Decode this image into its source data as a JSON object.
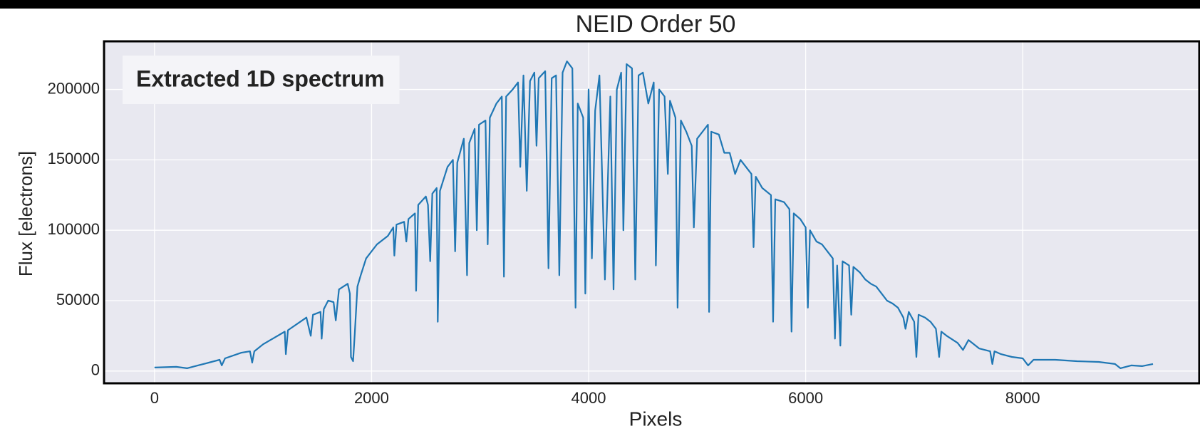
{
  "chart_data": {
    "type": "line",
    "title": "NEID Order 50",
    "x_label": "Pixels",
    "y_label": "Flux [electrons]",
    "x": [
      0,
      200,
      300,
      400,
      500,
      600,
      620,
      650,
      800,
      880,
      900,
      920,
      1000,
      1200,
      1210,
      1230,
      1400,
      1440,
      1460,
      1530,
      1540,
      1560,
      1600,
      1650,
      1670,
      1700,
      1780,
      1800,
      1810,
      1830,
      1845,
      1870,
      1900,
      1950,
      2050,
      2150,
      2200,
      2210,
      2230,
      2300,
      2320,
      2340,
      2400,
      2410,
      2430,
      2500,
      2520,
      2540,
      2560,
      2600,
      2610,
      2630,
      2700,
      2750,
      2770,
      2790,
      2850,
      2880,
      2900,
      2950,
      2970,
      2990,
      3050,
      3070,
      3090,
      3150,
      3200,
      3220,
      3240,
      3300,
      3350,
      3370,
      3400,
      3430,
      3460,
      3500,
      3520,
      3540,
      3600,
      3630,
      3660,
      3700,
      3730,
      3760,
      3800,
      3850,
      3880,
      3900,
      3950,
      3970,
      4000,
      4030,
      4060,
      4100,
      4150,
      4200,
      4230,
      4260,
      4300,
      4320,
      4350,
      4400,
      4430,
      4460,
      4500,
      4550,
      4600,
      4620,
      4650,
      4700,
      4730,
      4750,
      4800,
      4820,
      4850,
      4900,
      4950,
      4970,
      5000,
      5100,
      5110,
      5130,
      5200,
      5250,
      5300,
      5350,
      5400,
      5500,
      5520,
      5540,
      5600,
      5680,
      5700,
      5720,
      5800,
      5850,
      5870,
      5890,
      5950,
      6000,
      6020,
      6040,
      6100,
      6150,
      6200,
      6250,
      6270,
      6290,
      6320,
      6340,
      6400,
      6420,
      6440,
      6500,
      6550,
      6600,
      6650,
      6700,
      6750,
      6800,
      6850,
      6900,
      6920,
      6950,
      7000,
      7020,
      7040,
      7100,
      7150,
      7200,
      7230,
      7250,
      7300,
      7400,
      7450,
      7500,
      7600,
      7700,
      7720,
      7740,
      7800,
      7900,
      8000,
      8050,
      8100,
      8300,
      8500,
      8700,
      8850,
      8900,
      9000,
      9100,
      9200
    ],
    "series": [
      {
        "name": "Extracted 1D spectrum",
        "color": "#1f77b4",
        "values": [
          2500,
          3000,
          2000,
          4000,
          6000,
          8000,
          4000,
          9000,
          13000,
          14000,
          6000,
          14000,
          19000,
          28000,
          12000,
          29000,
          38000,
          25000,
          40000,
          42000,
          23000,
          44000,
          50000,
          49000,
          36000,
          58000,
          62000,
          55000,
          10000,
          7000,
          26000,
          60000,
          68000,
          80000,
          90000,
          96000,
          102000,
          82000,
          104000,
          106000,
          92000,
          108000,
          112000,
          57000,
          118000,
          124000,
          118000,
          78000,
          126000,
          130000,
          35000,
          128000,
          145000,
          150000,
          85000,
          148000,
          165000,
          68000,
          162000,
          172000,
          100000,
          175000,
          178000,
          90000,
          180000,
          190000,
          195000,
          67000,
          195000,
          200000,
          205000,
          145000,
          210000,
          128000,
          206000,
          212000,
          160000,
          208000,
          213000,
          73000,
          208000,
          210000,
          68000,
          212000,
          220000,
          215000,
          45000,
          190000,
          180000,
          55000,
          200000,
          80000,
          185000,
          210000,
          65000,
          195000,
          58000,
          200000,
          212000,
          100000,
          218000,
          215000,
          65000,
          210000,
          212000,
          190000,
          205000,
          75000,
          200000,
          195000,
          140000,
          192000,
          180000,
          45000,
          178000,
          170000,
          160000,
          102000,
          165000,
          175000,
          42000,
          170000,
          168000,
          155000,
          155000,
          140000,
          150000,
          140000,
          88000,
          138000,
          130000,
          125000,
          35000,
          122000,
          120000,
          115000,
          28000,
          112000,
          108000,
          102000,
          45000,
          100000,
          92000,
          90000,
          85000,
          80000,
          23000,
          75000,
          18000,
          78000,
          75000,
          40000,
          74000,
          70000,
          65000,
          62000,
          60000,
          55000,
          50000,
          48000,
          45000,
          38000,
          30000,
          42000,
          35000,
          10000,
          40000,
          38000,
          35000,
          30000,
          10000,
          28000,
          25000,
          20000,
          15000,
          22000,
          16000,
          14000,
          5000,
          14000,
          12000,
          10000,
          9000,
          4000,
          8000,
          8000,
          7000,
          6500,
          5000,
          2000,
          4000,
          3500,
          5000
        ]
      }
    ],
    "xlim": [
      -465,
      9627
    ],
    "ylim": [
      -8700,
      234200
    ],
    "xticks": [
      0,
      2000,
      4000,
      6000,
      8000
    ],
    "yticks": [
      0,
      50000,
      100000,
      150000,
      200000
    ],
    "grid": true,
    "legend": "upper left"
  }
}
